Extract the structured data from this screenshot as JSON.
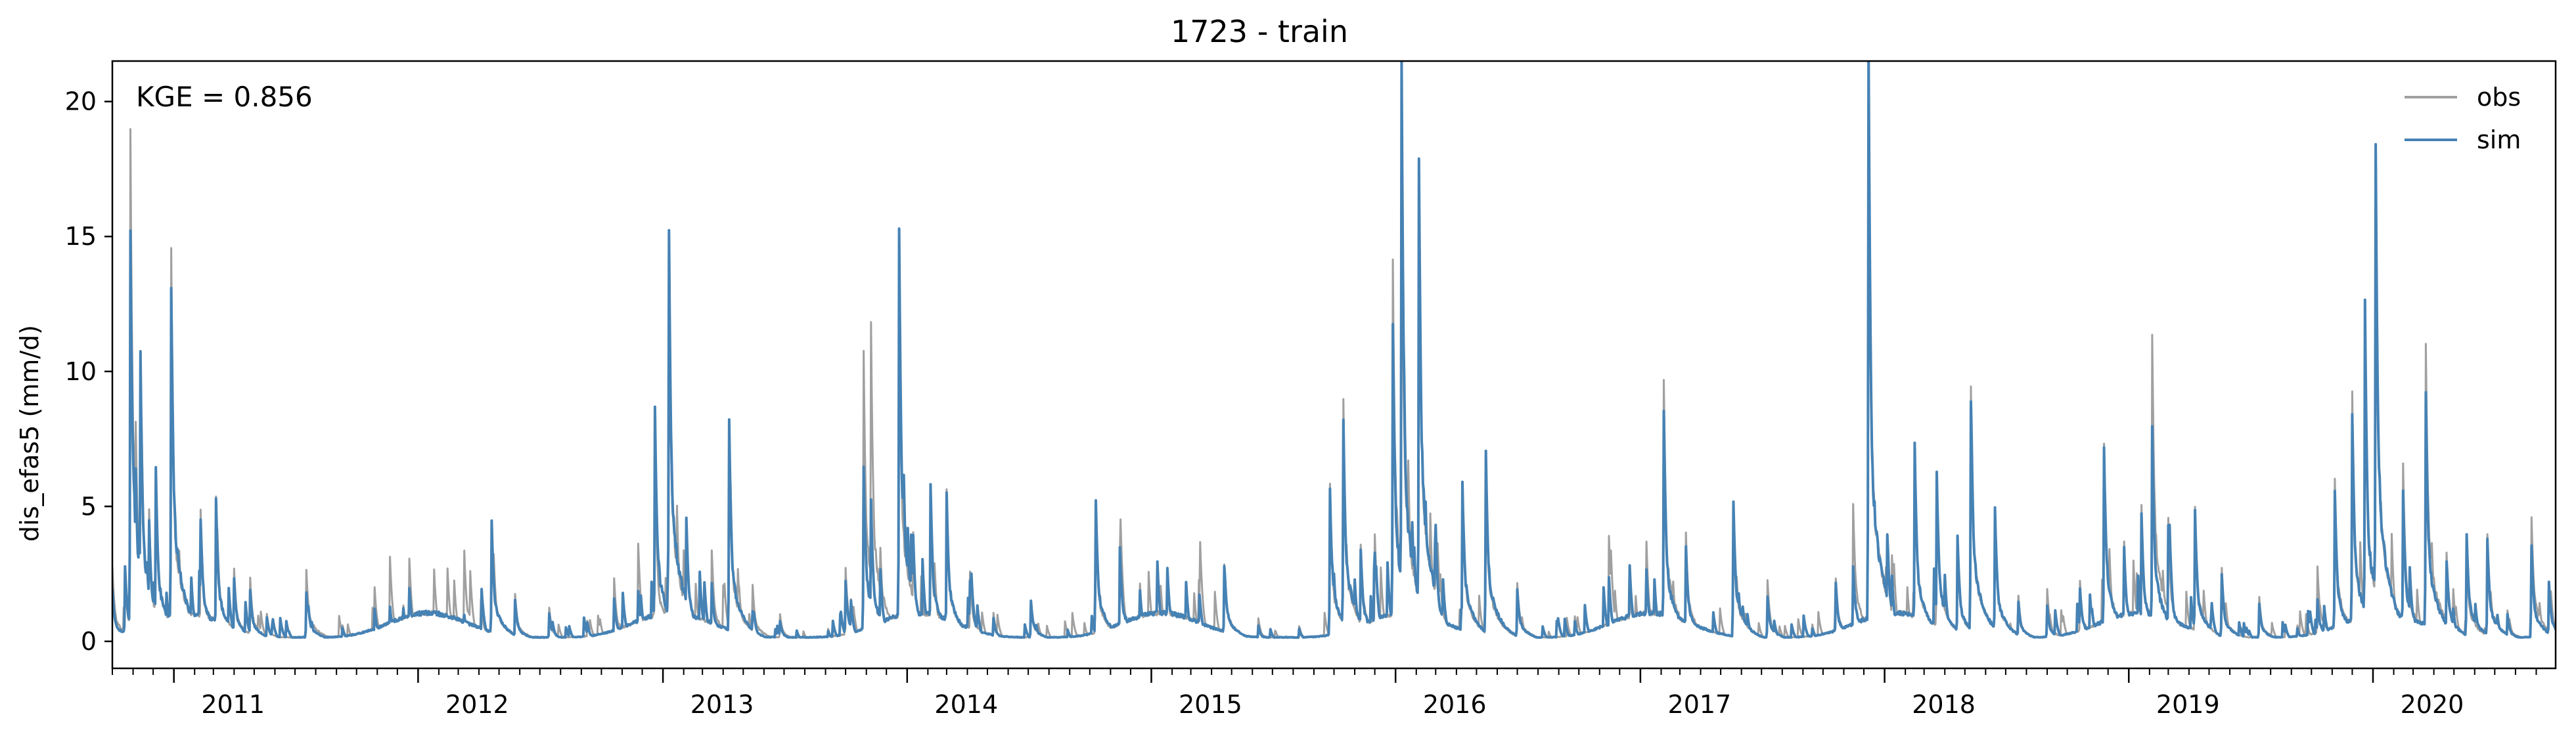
{
  "chart_data": {
    "type": "line",
    "title": "1723 - train",
    "xlabel": "",
    "ylabel": "dis_efas5 (mm/d)",
    "annotation": "KGE = 0.856",
    "xlim": [
      "2010-10-01",
      "2020-09-30"
    ],
    "ylim": [
      -1.0,
      21.5
    ],
    "yticks": [
      0,
      5,
      10,
      15,
      20
    ],
    "xticks": [
      "2011",
      "2012",
      "2013",
      "2014",
      "2015",
      "2016",
      "2017",
      "2018",
      "2019",
      "2020"
    ],
    "grid": false,
    "legend": "top-right",
    "series": [
      {
        "name": "obs",
        "color": "#a0a0a0",
        "peaks": [
          [
            "2010-10-01",
            2.6
          ],
          [
            "2010-10-20",
            2.4
          ],
          [
            "2010-10-28",
            18.4
          ],
          [
            "2010-11-05",
            7.6
          ],
          [
            "2010-11-12",
            11.2
          ],
          [
            "2010-11-25",
            5.0
          ],
          [
            "2010-12-05",
            6.2
          ],
          [
            "2010-12-28",
            12.5
          ],
          [
            "2011-02-10",
            4.6
          ],
          [
            "2011-03-05",
            5.2
          ],
          [
            "2011-04-01",
            2.6
          ],
          [
            "2011-04-25",
            2.2
          ],
          [
            "2011-05-20",
            1.0
          ],
          [
            "2011-07-18",
            2.7
          ],
          [
            "2011-09-10",
            0.6
          ],
          [
            "2011-10-28",
            1.9
          ],
          [
            "2011-11-20",
            1.5
          ],
          [
            "2011-12-10",
            1.4
          ],
          [
            "2012-01-25",
            2.6
          ],
          [
            "2012-03-10",
            3.5
          ],
          [
            "2012-04-20",
            4.2
          ],
          [
            "2012-05-25",
            1.8
          ],
          [
            "2012-07-15",
            1.2
          ],
          [
            "2012-09-10",
            0.8
          ],
          [
            "2012-10-20",
            2.3
          ],
          [
            "2012-11-25",
            2.6
          ],
          [
            "2012-12-20",
            5.8
          ],
          [
            "2013-01-10",
            14.8
          ],
          [
            "2013-02-05",
            4.6
          ],
          [
            "2013-03-15",
            3.2
          ],
          [
            "2013-04-10",
            7.0
          ],
          [
            "2013-04-25",
            2.1
          ],
          [
            "2013-05-15",
            2.0
          ],
          [
            "2013-06-25",
            1.0
          ],
          [
            "2013-09-05",
            0.5
          ],
          [
            "2013-10-01",
            2.7
          ],
          [
            "2013-10-28",
            11.5
          ],
          [
            "2013-11-08",
            11.6
          ],
          [
            "2013-11-22",
            3.5
          ],
          [
            "2013-12-20",
            13.5
          ],
          [
            "2014-01-10",
            4.0
          ],
          [
            "2014-02-05",
            5.0
          ],
          [
            "2014-03-01",
            5.4
          ],
          [
            "2014-04-05",
            2.5
          ],
          [
            "2014-05-10",
            1.0
          ],
          [
            "2014-07-05",
            1.6
          ],
          [
            "2014-10-10",
            4.6
          ],
          [
            "2014-11-15",
            3.6
          ],
          [
            "2014-12-15",
            2.0
          ],
          [
            "2015-01-25",
            2.4
          ],
          [
            "2015-03-15",
            1.8
          ],
          [
            "2015-04-20",
            3.0
          ],
          [
            "2015-06-10",
            0.8
          ],
          [
            "2015-08-10",
            0.6
          ],
          [
            "2015-09-25",
            5.5
          ],
          [
            "2015-10-15",
            7.8
          ],
          [
            "2015-11-10",
            3.8
          ],
          [
            "2015-12-01",
            4.0
          ],
          [
            "2015-12-28",
            14.5
          ],
          [
            "2016-01-10",
            18.5
          ],
          [
            "2016-02-05",
            18.5
          ],
          [
            "2016-03-01",
            4.0
          ],
          [
            "2016-04-10",
            5.8
          ],
          [
            "2016-05-15",
            6.5
          ],
          [
            "2016-07-01",
            2.2
          ],
          [
            "2016-09-25",
            1.0
          ],
          [
            "2016-11-15",
            4.0
          ],
          [
            "2017-01-10",
            3.5
          ],
          [
            "2017-02-05",
            9.0
          ],
          [
            "2017-03-10",
            4.0
          ],
          [
            "2017-05-20",
            4.8
          ],
          [
            "2017-07-10",
            1.8
          ],
          [
            "2017-09-15",
            0.6
          ],
          [
            "2017-10-20",
            2.4
          ],
          [
            "2017-11-15",
            5.3
          ],
          [
            "2017-12-08",
            20.2
          ],
          [
            "2018-01-05",
            4.0
          ],
          [
            "2018-02-15",
            7.2
          ],
          [
            "2018-03-20",
            5.8
          ],
          [
            "2018-04-20",
            3.5
          ],
          [
            "2018-05-10",
            9.2
          ],
          [
            "2018-06-15",
            4.6
          ],
          [
            "2018-07-20",
            1.6
          ],
          [
            "2018-09-01",
            1.5
          ],
          [
            "2018-10-20",
            2.2
          ],
          [
            "2018-11-25",
            7.5
          ],
          [
            "2018-12-25",
            3.6
          ],
          [
            "2019-01-20",
            5.0
          ],
          [
            "2019-02-05",
            11.7
          ],
          [
            "2019-03-01",
            4.4
          ],
          [
            "2019-04-10",
            4.8
          ],
          [
            "2019-05-20",
            2.6
          ],
          [
            "2019-07-15",
            1.6
          ],
          [
            "2019-09-10",
            0.6
          ],
          [
            "2019-10-10",
            3.0
          ],
          [
            "2019-11-05",
            6.0
          ],
          [
            "2019-12-01",
            8.8
          ],
          [
            "2019-12-20",
            11.8
          ],
          [
            "2020-01-05",
            17.8
          ],
          [
            "2020-02-15",
            6.4
          ],
          [
            "2020-03-20",
            11.1
          ],
          [
            "2020-04-20",
            3.5
          ],
          [
            "2020-05-20",
            3.2
          ],
          [
            "2020-06-20",
            3.8
          ],
          [
            "2020-07-20",
            1.2
          ],
          [
            "2020-08-25",
            4.5
          ],
          [
            "2020-09-20",
            1.9
          ]
        ]
      },
      {
        "name": "sim",
        "color": "#4682b4",
        "peaks": [
          [
            "2010-10-01",
            2.0
          ],
          [
            "2010-10-20",
            2.8
          ],
          [
            "2010-10-28",
            16.3
          ],
          [
            "2010-11-05",
            6.5
          ],
          [
            "2010-11-12",
            10.5
          ],
          [
            "2010-11-25",
            4.5
          ],
          [
            "2010-12-05",
            6.4
          ],
          [
            "2010-12-28",
            13.7
          ],
          [
            "2011-02-10",
            4.8
          ],
          [
            "2011-03-05",
            5.2
          ],
          [
            "2011-04-01",
            2.4
          ],
          [
            "2011-04-25",
            2.0
          ],
          [
            "2011-05-20",
            0.9
          ],
          [
            "2011-07-18",
            1.9
          ],
          [
            "2011-09-10",
            0.5
          ],
          [
            "2011-10-28",
            1.2
          ],
          [
            "2011-11-20",
            1.3
          ],
          [
            "2011-12-10",
            1.2
          ],
          [
            "2012-01-25",
            1.2
          ],
          [
            "2012-03-10",
            1.0
          ],
          [
            "2012-04-20",
            4.3
          ],
          [
            "2012-05-25",
            1.5
          ],
          [
            "2012-07-15",
            1.0
          ],
          [
            "2012-09-10",
            0.7
          ],
          [
            "2012-10-20",
            1.6
          ],
          [
            "2012-11-25",
            2.0
          ],
          [
            "2012-12-20",
            8.6
          ],
          [
            "2013-01-10",
            16.2
          ],
          [
            "2013-02-05",
            4.4
          ],
          [
            "2013-03-15",
            2.2
          ],
          [
            "2013-04-10",
            7.7
          ],
          [
            "2013-04-25",
            1.3
          ],
          [
            "2013-05-15",
            1.2
          ],
          [
            "2013-06-25",
            0.8
          ],
          [
            "2013-09-05",
            0.4
          ],
          [
            "2013-10-01",
            2.2
          ],
          [
            "2013-10-28",
            6.9
          ],
          [
            "2013-11-08",
            5.0
          ],
          [
            "2013-11-22",
            2.6
          ],
          [
            "2013-12-20",
            14.2
          ],
          [
            "2014-01-10",
            3.8
          ],
          [
            "2014-02-05",
            5.6
          ],
          [
            "2014-03-01",
            5.6
          ],
          [
            "2014-04-05",
            2.4
          ],
          [
            "2014-05-10",
            0.9
          ],
          [
            "2014-07-05",
            1.5
          ],
          [
            "2014-10-10",
            5.0
          ],
          [
            "2014-11-15",
            3.5
          ],
          [
            "2014-12-15",
            1.8
          ],
          [
            "2015-01-25",
            2.7
          ],
          [
            "2015-03-15",
            1.5
          ],
          [
            "2015-04-20",
            3.0
          ],
          [
            "2015-06-10",
            0.6
          ],
          [
            "2015-08-10",
            0.5
          ],
          [
            "2015-09-25",
            6.1
          ],
          [
            "2015-10-15",
            8.7
          ],
          [
            "2015-11-10",
            3.4
          ],
          [
            "2015-12-01",
            3.5
          ],
          [
            "2015-12-28",
            12.7
          ],
          [
            "2016-01-10",
            18.9
          ],
          [
            "2016-02-05",
            18.9
          ],
          [
            "2016-03-01",
            4.2
          ],
          [
            "2016-04-10",
            6.2
          ],
          [
            "2016-05-15",
            7.2
          ],
          [
            "2016-07-01",
            2.0
          ],
          [
            "2016-09-25",
            0.8
          ],
          [
            "2016-11-15",
            2.2
          ],
          [
            "2017-01-10",
            2.6
          ],
          [
            "2017-02-05",
            8.0
          ],
          [
            "2017-03-10",
            3.6
          ],
          [
            "2017-05-20",
            4.9
          ],
          [
            "2017-07-10",
            1.6
          ],
          [
            "2017-09-15",
            0.5
          ],
          [
            "2017-10-20",
            2.2
          ],
          [
            "2017-11-15",
            3.0
          ],
          [
            "2017-12-08",
            20.5
          ],
          [
            "2018-01-05",
            4.2
          ],
          [
            "2018-02-15",
            7.2
          ],
          [
            "2018-03-20",
            6.0
          ],
          [
            "2018-04-20",
            3.6
          ],
          [
            "2018-05-10",
            9.5
          ],
          [
            "2018-06-15",
            4.6
          ],
          [
            "2018-07-20",
            1.5
          ],
          [
            "2018-09-01",
            1.3
          ],
          [
            "2018-10-20",
            2.0
          ],
          [
            "2018-11-25",
            7.4
          ],
          [
            "2018-12-25",
            3.4
          ],
          [
            "2019-01-20",
            4.6
          ],
          [
            "2019-02-05",
            8.0
          ],
          [
            "2019-03-01",
            4.2
          ],
          [
            "2019-04-10",
            4.6
          ],
          [
            "2019-05-20",
            2.4
          ],
          [
            "2019-07-15",
            1.4
          ],
          [
            "2019-09-10",
            0.5
          ],
          [
            "2019-10-10",
            1.6
          ],
          [
            "2019-11-05",
            5.2
          ],
          [
            "2019-12-01",
            8.8
          ],
          [
            "2019-12-20",
            12.2
          ],
          [
            "2020-01-05",
            18.1
          ],
          [
            "2020-02-15",
            5.6
          ],
          [
            "2020-03-20",
            9.5
          ],
          [
            "2020-04-20",
            3.2
          ],
          [
            "2020-05-20",
            3.9
          ],
          [
            "2020-06-20",
            3.6
          ],
          [
            "2020-07-20",
            1.0
          ],
          [
            "2020-08-25",
            3.4
          ],
          [
            "2020-09-20",
            2.1
          ]
        ]
      }
    ]
  }
}
